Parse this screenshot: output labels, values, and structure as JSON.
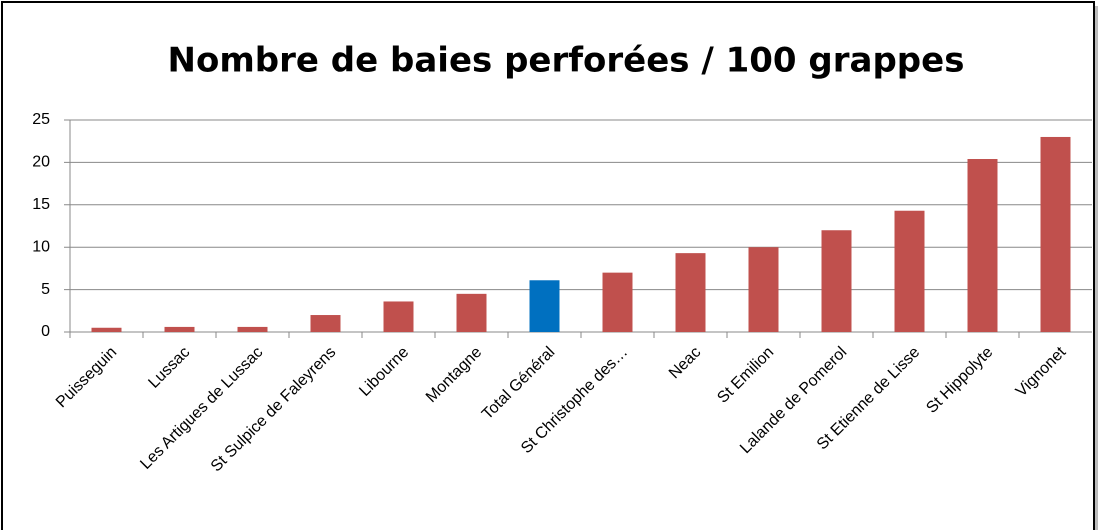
{
  "chart_data": {
    "type": "bar",
    "title": "Nombre de baies perforées / 100 grappes",
    "categories": [
      "Puisseguin",
      "Lussac",
      "Les Artigues de Lussac",
      "St Sulpice de Faleyrens",
      "Libourne",
      "Montagne",
      "Total Général",
      "St Christophe des…",
      "Neac",
      "St Emilion",
      "Lalande de Pomerol",
      "St Etienne de Lisse",
      "St Hippolyte",
      "Vignonet"
    ],
    "values": [
      0.5,
      0.6,
      0.6,
      2.0,
      3.6,
      4.5,
      6.1,
      7.0,
      9.3,
      10.0,
      12.0,
      14.3,
      20.4,
      23.0
    ],
    "colors": [
      "#c0504d",
      "#c0504d",
      "#c0504d",
      "#c0504d",
      "#c0504d",
      "#c0504d",
      "#0070c0",
      "#c0504d",
      "#c0504d",
      "#c0504d",
      "#c0504d",
      "#c0504d",
      "#c0504d",
      "#c0504d"
    ],
    "ylim": [
      0,
      25
    ],
    "yticks": [
      0,
      5,
      10,
      15,
      20,
      25
    ],
    "grid": true
  }
}
